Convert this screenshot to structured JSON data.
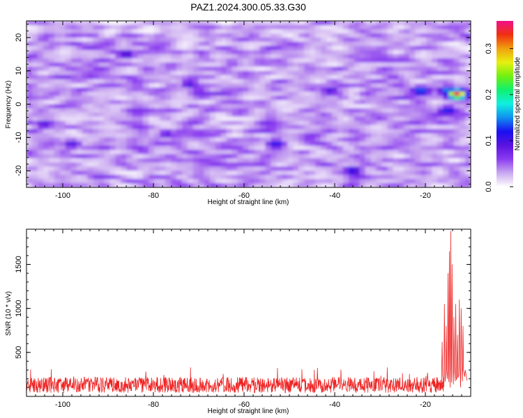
{
  "title": "PAZ1.2024.300.05.33.G30",
  "chart_data": [
    {
      "type": "heatmap",
      "xlabel": "Height of straight line (km)",
      "ylabel": "Frequency (Hz)",
      "xlim": [
        -108,
        -10
      ],
      "ylim": [
        -25,
        25
      ],
      "xticks": [
        "-100",
        "-80",
        "-60",
        "-40",
        "-20"
      ],
      "yticks": [
        "-20",
        "-10",
        "0",
        "10",
        "20"
      ],
      "grid": false,
      "colorbar": {
        "label": "Normalized spectral amplitude",
        "range": [
          0,
          0.36
        ],
        "ticks": [
          "0.0",
          "0.1",
          "0.2",
          "0.3"
        ],
        "colors": [
          "#ffffff",
          "#c9a8f0",
          "#8b3cf0",
          "#5a12e0",
          "#1a10f0",
          "#1090f0",
          "#10f0e0",
          "#10f070",
          "#70f010",
          "#e8f010",
          "#f0a010",
          "#f03010",
          "#f0108a"
        ]
      },
      "hotspots": [
        {
          "x": -13,
          "y": 3,
          "value": 0.34
        },
        {
          "x": -15,
          "y": 4,
          "value": 0.16
        },
        {
          "x": -15,
          "y": -2,
          "value": 0.13
        },
        {
          "x": -21,
          "y": 4,
          "value": 0.15
        },
        {
          "x": -36,
          "y": -20,
          "value": 0.12
        },
        {
          "x": -53,
          "y": -12,
          "value": 0.12
        },
        {
          "x": -41,
          "y": 4,
          "value": 0.1
        },
        {
          "x": -72,
          "y": 6,
          "value": 0.1
        },
        {
          "x": -86,
          "y": 15,
          "value": 0.11
        },
        {
          "x": -98,
          "y": -12,
          "value": 0.1
        },
        {
          "x": -77,
          "y": -9,
          "value": 0.09
        },
        {
          "x": -104,
          "y": -6,
          "value": 0.1
        }
      ]
    },
    {
      "type": "line",
      "xlabel": "Height of straight line (km)",
      "ylabel": "SNR (10 * v/v)",
      "xlim": [
        -108,
        -10
      ],
      "ylim": [
        0,
        1900
      ],
      "xticks": [
        "-100",
        "-80",
        "-60",
        "-40",
        "-20"
      ],
      "yticks": [
        "500",
        "1000",
        "1500"
      ],
      "grid": false,
      "color": "#ee2222",
      "baseline": {
        "x_range": [
          -108,
          -16
        ],
        "mean": 130,
        "range": [
          30,
          330
        ]
      },
      "peaks": [
        {
          "x": -16.3,
          "y": 620
        },
        {
          "x": -15.8,
          "y": 1050
        },
        {
          "x": -15.4,
          "y": 800
        },
        {
          "x": -15.0,
          "y": 1400
        },
        {
          "x": -14.7,
          "y": 1650
        },
        {
          "x": -14.4,
          "y": 1880
        },
        {
          "x": -14.1,
          "y": 1500
        },
        {
          "x": -13.7,
          "y": 900
        },
        {
          "x": -13.3,
          "y": 1050
        },
        {
          "x": -12.9,
          "y": 700
        },
        {
          "x": -12.5,
          "y": 1100
        },
        {
          "x": -12.1,
          "y": 1000
        },
        {
          "x": -11.7,
          "y": 800
        },
        {
          "x": -11.2,
          "y": 300
        },
        {
          "x": -10.8,
          "y": 180
        }
      ]
    }
  ]
}
